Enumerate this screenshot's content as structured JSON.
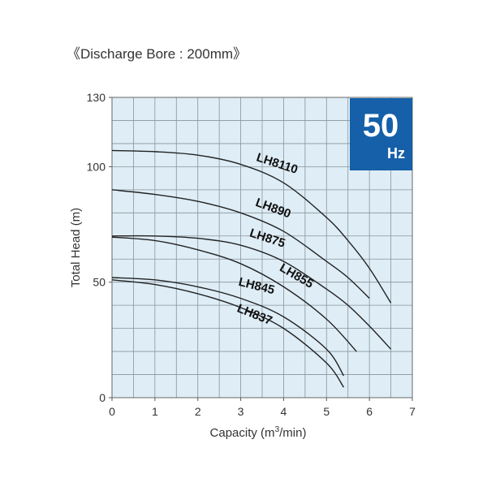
{
  "chart_data": {
    "type": "line",
    "title": "《Discharge Bore : 200mm》",
    "badge": {
      "value": "50",
      "unit": "Hz",
      "color": "#1560a8"
    },
    "x_label": [
      "Capacity (m",
      "3",
      "/min)"
    ],
    "y_label": "Total Head (m)",
    "xlim": [
      0,
      7
    ],
    "ylim": [
      0,
      130
    ],
    "xticks": [
      0,
      1,
      2,
      3,
      4,
      5,
      6,
      7
    ],
    "yticks": [
      0,
      50,
      100,
      130
    ],
    "grid": true,
    "x_grid_step": 0.5,
    "y_grid_step": 10,
    "background": "#deedf6",
    "series": [
      {
        "name": "LH8110",
        "color": "#222222",
        "x": [
          0,
          1,
          2,
          3,
          4,
          5,
          5.5,
          6,
          6.5
        ],
        "values": [
          107,
          106.5,
          105,
          101,
          93,
          78,
          68,
          56,
          41
        ]
      },
      {
        "name": "LH890",
        "color": "#222222",
        "x": [
          0,
          1,
          2,
          3,
          4,
          5,
          5.5,
          6
        ],
        "values": [
          90,
          88,
          85,
          80,
          72,
          59,
          52,
          43
        ]
      },
      {
        "name": "LH875",
        "color": "#222222",
        "x": [
          0,
          1,
          2,
          3,
          4,
          5,
          5.5,
          6,
          6.5
        ],
        "values": [
          70,
          70,
          69,
          66,
          59,
          47,
          40,
          31,
          21
        ]
      },
      {
        "name": "LH855",
        "color": "#222222",
        "x": [
          0,
          1,
          2,
          3,
          4,
          5,
          5.7
        ],
        "values": [
          69.5,
          68,
          64,
          58,
          48,
          34,
          20
        ]
      },
      {
        "name": "LH845",
        "color": "#222222",
        "x": [
          0,
          1,
          2,
          3,
          4,
          5,
          5.4
        ],
        "values": [
          52,
          51,
          48,
          43,
          35,
          21,
          9.5
        ]
      },
      {
        "name": "LH837",
        "color": "#222222",
        "x": [
          0,
          1,
          2,
          3,
          4,
          5,
          5.4
        ],
        "values": [
          51,
          49,
          45,
          39,
          30,
          15,
          4.5
        ]
      }
    ]
  }
}
